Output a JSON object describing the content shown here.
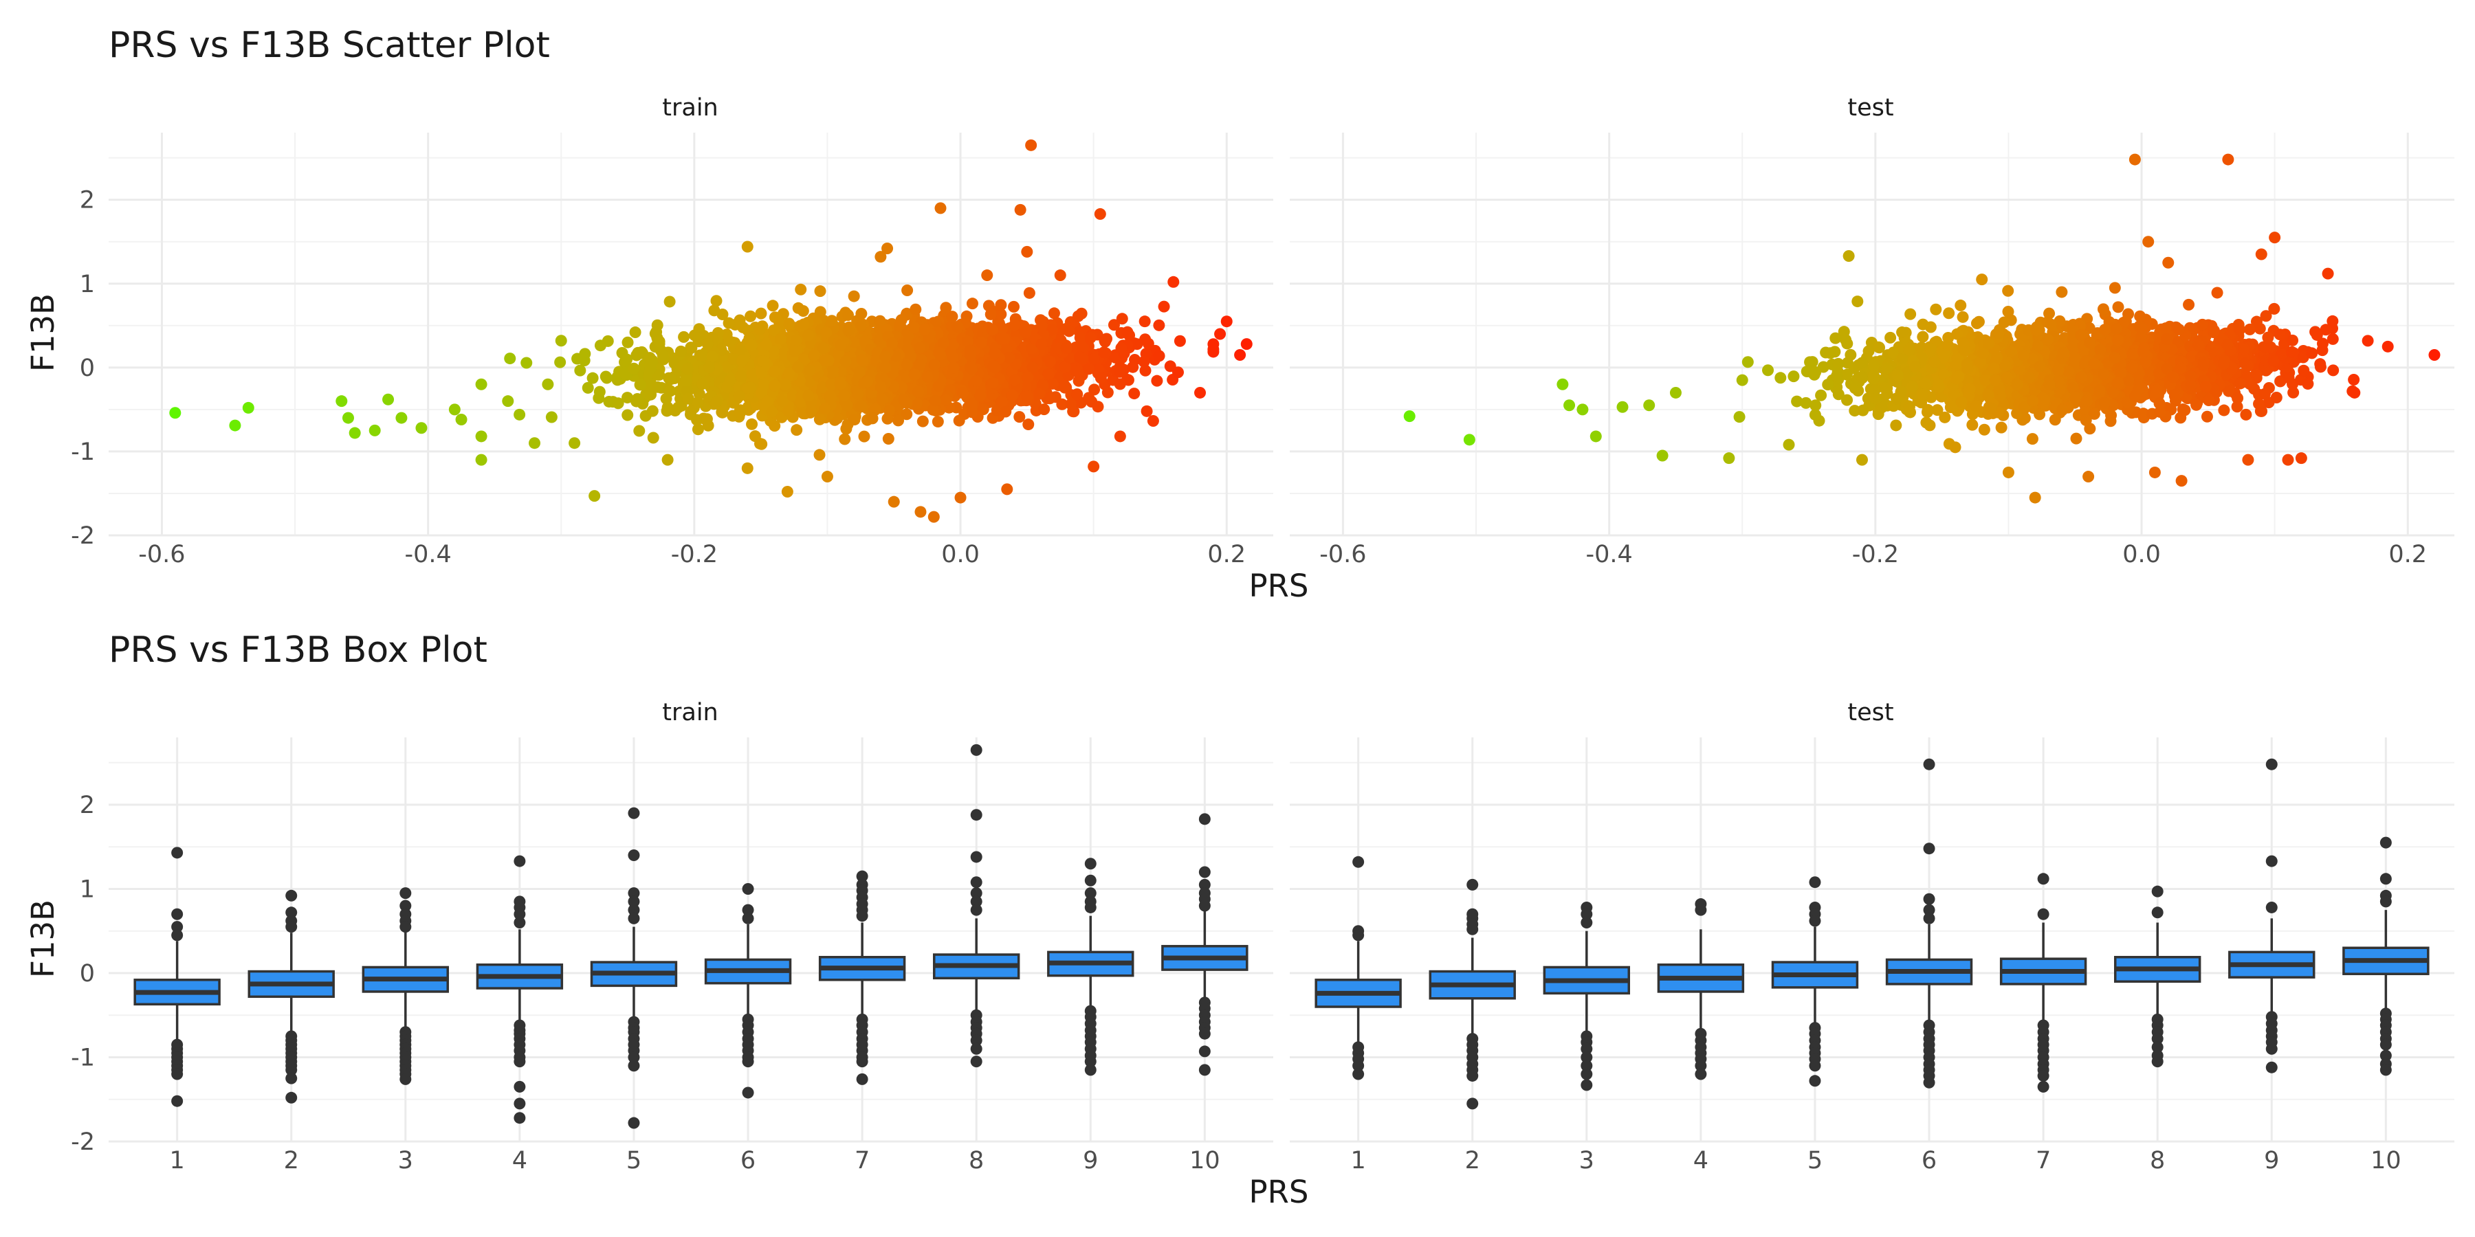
{
  "chart_data": [
    {
      "type": "scatter",
      "title": "PRS vs F13B Scatter Plot",
      "xlabel": "PRS",
      "ylabel": "F13B",
      "xlim": [
        -0.64,
        0.235
      ],
      "ylim": [
        -2.0,
        2.8
      ],
      "xticks": [
        -0.6,
        -0.4,
        -0.2,
        0.0,
        0.2
      ],
      "yticks": [
        -2,
        -1,
        0,
        1,
        2
      ],
      "x_tick_labels": [
        "-0.6",
        "-0.4",
        "-0.2",
        "0.0",
        "0.2"
      ],
      "y_tick_labels": [
        "-2",
        "-1",
        "0",
        "1",
        "2"
      ],
      "grid": true,
      "legend": "none",
      "color_scale": {
        "variable": "PRS",
        "low": "#5ff500",
        "mid": "#d89a00",
        "high": "#ff1e00"
      },
      "panels": [
        {
          "strip": "train",
          "points": [
            [
              -0.59,
              -0.54
            ],
            [
              -0.545,
              -0.69
            ],
            [
              -0.535,
              -0.48
            ],
            [
              -0.465,
              -0.4
            ],
            [
              -0.46,
              -0.6
            ],
            [
              -0.455,
              -0.78
            ],
            [
              -0.44,
              -0.75
            ],
            [
              -0.43,
              -0.38
            ],
            [
              -0.42,
              -0.6
            ],
            [
              -0.405,
              -0.72
            ],
            [
              -0.38,
              -0.5
            ],
            [
              -0.375,
              -0.62
            ],
            [
              -0.36,
              -0.2
            ],
            [
              -0.36,
              -0.82
            ],
            [
              -0.36,
              -1.1
            ],
            [
              -0.34,
              -0.4
            ],
            [
              -0.32,
              -0.9
            ],
            [
              -0.31,
              -0.2
            ],
            [
              -0.3,
              0.32
            ],
            [
              -0.29,
              -0.9
            ],
            [
              -0.275,
              -1.53
            ],
            [
              -0.25,
              0.3
            ],
            [
              -0.22,
              -1.1
            ],
            [
              -0.185,
              0.68
            ],
            [
              -0.16,
              1.44
            ],
            [
              -0.16,
              -1.2
            ],
            [
              -0.13,
              -1.48
            ],
            [
              -0.12,
              0.93
            ],
            [
              -0.1,
              -1.3
            ],
            [
              -0.08,
              0.85
            ],
            [
              -0.06,
              1.32
            ],
            [
              -0.055,
              1.42
            ],
            [
              -0.05,
              -1.6
            ],
            [
              -0.04,
              0.92
            ],
            [
              -0.03,
              -1.72
            ],
            [
              -0.02,
              -1.78
            ],
            [
              -0.015,
              1.9
            ],
            [
              0.0,
              -1.55
            ],
            [
              0.02,
              1.1
            ],
            [
              0.035,
              -1.45
            ],
            [
              0.045,
              1.88
            ],
            [
              0.05,
              1.38
            ],
            [
              0.053,
              2.65
            ],
            [
              0.075,
              1.1
            ],
            [
              0.1,
              -1.18
            ],
            [
              0.105,
              1.83
            ],
            [
              0.12,
              -0.82
            ],
            [
              0.14,
              -0.52
            ],
            [
              0.16,
              1.02
            ],
            [
              0.18,
              -0.3
            ],
            [
              0.2,
              0.55
            ],
            [
              0.215,
              0.28
            ],
            [
              0.21,
              0.15
            ],
            [
              0.195,
              0.4
            ]
          ]
        },
        {
          "strip": "test",
          "points": [
            [
              -0.55,
              -0.58
            ],
            [
              -0.505,
              -0.86
            ],
            [
              -0.435,
              -0.2
            ],
            [
              -0.43,
              -0.45
            ],
            [
              -0.42,
              -0.5
            ],
            [
              -0.41,
              -0.82
            ],
            [
              -0.39,
              -0.47
            ],
            [
              -0.37,
              -0.45
            ],
            [
              -0.36,
              -1.05
            ],
            [
              -0.35,
              -0.3
            ],
            [
              -0.31,
              -1.08
            ],
            [
              -0.3,
              -0.15
            ],
            [
              -0.265,
              -0.92
            ],
            [
              -0.245,
              -0.45
            ],
            [
              -0.23,
              0.35
            ],
            [
              -0.22,
              1.33
            ],
            [
              -0.21,
              -1.1
            ],
            [
              -0.18,
              0.42
            ],
            [
              -0.14,
              -0.95
            ],
            [
              -0.12,
              1.05
            ],
            [
              -0.1,
              -1.25
            ],
            [
              -0.08,
              -1.55
            ],
            [
              -0.06,
              0.9
            ],
            [
              -0.04,
              -1.3
            ],
            [
              -0.02,
              0.95
            ],
            [
              -0.005,
              2.48
            ],
            [
              0.005,
              1.5
            ],
            [
              0.01,
              -1.25
            ],
            [
              0.02,
              1.25
            ],
            [
              0.03,
              -1.35
            ],
            [
              0.065,
              2.48
            ],
            [
              0.08,
              -1.1
            ],
            [
              0.09,
              1.35
            ],
            [
              0.1,
              1.55
            ],
            [
              0.11,
              -1.1
            ],
            [
              0.12,
              -1.08
            ],
            [
              0.14,
              1.12
            ],
            [
              0.16,
              -0.3
            ],
            [
              0.185,
              0.25
            ],
            [
              0.22,
              0.15
            ]
          ]
        }
      ]
    },
    {
      "type": "box",
      "title": "PRS vs F13B Box Plot",
      "xlabel": "PRS",
      "ylabel": "F13B",
      "categories": [
        "1",
        "2",
        "3",
        "4",
        "5",
        "6",
        "7",
        "8",
        "9",
        "10"
      ],
      "ylim": [
        -2.0,
        2.8
      ],
      "yticks": [
        -2,
        -1,
        0,
        1,
        2
      ],
      "y_tick_labels": [
        "-2",
        "-1",
        "0",
        "1",
        "2"
      ],
      "grid": true,
      "box_color": "#2f8ff0",
      "panels": [
        {
          "strip": "train",
          "boxes": [
            {
              "q1": -0.37,
              "median": -0.23,
              "q3": -0.08,
              "lower": -0.8,
              "upper": 0.38,
              "outliers": [
                1.43,
                0.7,
                0.55,
                0.45,
                -0.85,
                -0.9,
                -0.95,
                -1.0,
                -1.05,
                -1.1,
                -1.15,
                -1.2,
                -1.52
              ]
            },
            {
              "q1": -0.28,
              "median": -0.13,
              "q3": 0.02,
              "lower": -0.72,
              "upper": 0.48,
              "outliers": [
                0.92,
                0.72,
                0.62,
                0.55,
                -0.75,
                -0.8,
                -0.85,
                -0.9,
                -0.95,
                -1.0,
                -1.05,
                -1.1,
                -1.15,
                -1.25,
                -1.48
              ]
            },
            {
              "q1": -0.22,
              "median": -0.07,
              "q3": 0.07,
              "lower": -0.65,
              "upper": 0.5,
              "outliers": [
                0.95,
                0.8,
                0.7,
                0.62,
                0.55,
                -0.7,
                -0.75,
                -0.8,
                -0.85,
                -0.9,
                -0.95,
                -1.0,
                -1.05,
                -1.1,
                -1.15,
                -1.2,
                -1.26
              ]
            },
            {
              "q1": -0.18,
              "median": -0.04,
              "q3": 0.1,
              "lower": -0.6,
              "upper": 0.52,
              "outliers": [
                1.33,
                0.85,
                0.78,
                0.7,
                0.6,
                -0.62,
                -0.68,
                -0.72,
                -0.78,
                -0.85,
                -0.92,
                -1.0,
                -1.05,
                -1.35,
                -1.55,
                -1.72
              ]
            },
            {
              "q1": -0.15,
              "median": 0.0,
              "q3": 0.13,
              "lower": -0.55,
              "upper": 0.55,
              "outliers": [
                1.9,
                1.4,
                0.95,
                0.85,
                0.75,
                0.65,
                -0.58,
                -0.65,
                -0.7,
                -0.78,
                -0.85,
                -0.92,
                -1.0,
                -1.1,
                -1.78
              ]
            },
            {
              "q1": -0.12,
              "median": 0.03,
              "q3": 0.16,
              "lower": -0.5,
              "upper": 0.58,
              "outliers": [
                1.0,
                0.75,
                0.65,
                -0.55,
                -0.62,
                -0.7,
                -0.78,
                -0.85,
                -0.92,
                -1.0,
                -1.05,
                -1.42
              ]
            },
            {
              "q1": -0.08,
              "median": 0.06,
              "q3": 0.19,
              "lower": -0.5,
              "upper": 0.6,
              "outliers": [
                1.15,
                1.05,
                0.98,
                0.9,
                0.82,
                0.75,
                0.68,
                -0.55,
                -0.62,
                -0.7,
                -0.78,
                -0.85,
                -0.92,
                -1.0,
                -1.05,
                -1.26
              ]
            },
            {
              "q1": -0.06,
              "median": 0.09,
              "q3": 0.22,
              "lower": -0.45,
              "upper": 0.65,
              "outliers": [
                2.65,
                1.88,
                1.38,
                1.08,
                0.95,
                0.85,
                0.75,
                -0.5,
                -0.58,
                -0.65,
                -0.72,
                -0.8,
                -0.9,
                -1.05
              ]
            },
            {
              "q1": -0.03,
              "median": 0.12,
              "q3": 0.25,
              "lower": -0.42,
              "upper": 0.68,
              "outliers": [
                1.3,
                1.1,
                0.95,
                0.85,
                0.78,
                -0.45,
                -0.52,
                -0.6,
                -0.68,
                -0.75,
                -0.82,
                -0.9,
                -0.98,
                -1.05,
                -1.15
              ]
            },
            {
              "q1": 0.04,
              "median": 0.18,
              "q3": 0.32,
              "lower": -0.3,
              "upper": 0.75,
              "outliers": [
                1.83,
                1.2,
                1.05,
                0.95,
                0.88,
                0.8,
                -0.35,
                -0.42,
                -0.5,
                -0.58,
                -0.65,
                -0.72,
                -0.93,
                -1.15
              ]
            }
          ]
        },
        {
          "strip": "test",
          "boxes": [
            {
              "q1": -0.4,
              "median": -0.24,
              "q3": -0.08,
              "lower": -0.82,
              "upper": 0.38,
              "outliers": [
                1.32,
                0.5,
                0.45,
                -0.88,
                -0.95,
                -1.02,
                -1.1,
                -1.2
              ]
            },
            {
              "q1": -0.3,
              "median": -0.14,
              "q3": 0.02,
              "lower": -0.72,
              "upper": 0.42,
              "outliers": [
                1.05,
                0.7,
                0.65,
                0.58,
                0.52,
                -0.78,
                -0.85,
                -0.92,
                -1.0,
                -1.08,
                -1.15,
                -1.22,
                -1.55
              ]
            },
            {
              "q1": -0.24,
              "median": -0.09,
              "q3": 0.07,
              "lower": -0.7,
              "upper": 0.5,
              "outliers": [
                0.78,
                0.7,
                0.6,
                -0.75,
                -0.82,
                -0.9,
                -1.0,
                -1.1,
                -1.2,
                -1.33
              ]
            },
            {
              "q1": -0.22,
              "median": -0.06,
              "q3": 0.1,
              "lower": -0.68,
              "upper": 0.52,
              "outliers": [
                0.82,
                0.75,
                -0.72,
                -0.8,
                -0.88,
                -0.95,
                -1.02,
                -1.1,
                -1.2
              ]
            },
            {
              "q1": -0.17,
              "median": -0.02,
              "q3": 0.13,
              "lower": -0.6,
              "upper": 0.55,
              "outliers": [
                1.08,
                0.78,
                0.7,
                0.62,
                -0.65,
                -0.72,
                -0.8,
                -0.88,
                -0.95,
                -1.02,
                -1.1,
                -1.28
              ]
            },
            {
              "q1": -0.13,
              "median": 0.02,
              "q3": 0.16,
              "lower": -0.58,
              "upper": 0.58,
              "outliers": [
                2.48,
                1.48,
                0.88,
                0.75,
                0.65,
                -0.62,
                -0.7,
                -0.78,
                -0.85,
                -0.92,
                -1.0,
                -1.08,
                -1.15,
                -1.22,
                -1.3
              ]
            },
            {
              "q1": -0.13,
              "median": 0.02,
              "q3": 0.17,
              "lower": -0.58,
              "upper": 0.6,
              "outliers": [
                1.12,
                0.7,
                -0.62,
                -0.7,
                -0.78,
                -0.85,
                -0.92,
                -1.0,
                -1.08,
                -1.15,
                -1.22,
                -1.35
              ]
            },
            {
              "q1": -0.1,
              "median": 0.05,
              "q3": 0.19,
              "lower": -0.52,
              "upper": 0.6,
              "outliers": [
                0.97,
                0.72,
                -0.55,
                -0.62,
                -0.7,
                -0.78,
                -0.88,
                -0.98,
                -1.05
              ]
            },
            {
              "q1": -0.05,
              "median": 0.1,
              "q3": 0.25,
              "lower": -0.48,
              "upper": 0.65,
              "outliers": [
                2.48,
                1.33,
                0.78,
                -0.52,
                -0.6,
                -0.68,
                -0.75,
                -0.82,
                -0.9,
                -1.12
              ]
            },
            {
              "q1": -0.01,
              "median": 0.15,
              "q3": 0.3,
              "lower": -0.42,
              "upper": 0.75,
              "outliers": [
                1.55,
                1.12,
                0.92,
                0.85,
                -0.48,
                -0.55,
                -0.62,
                -0.7,
                -0.78,
                -0.85,
                -0.98,
                -1.08,
                -1.15
              ]
            }
          ]
        }
      ]
    }
  ]
}
